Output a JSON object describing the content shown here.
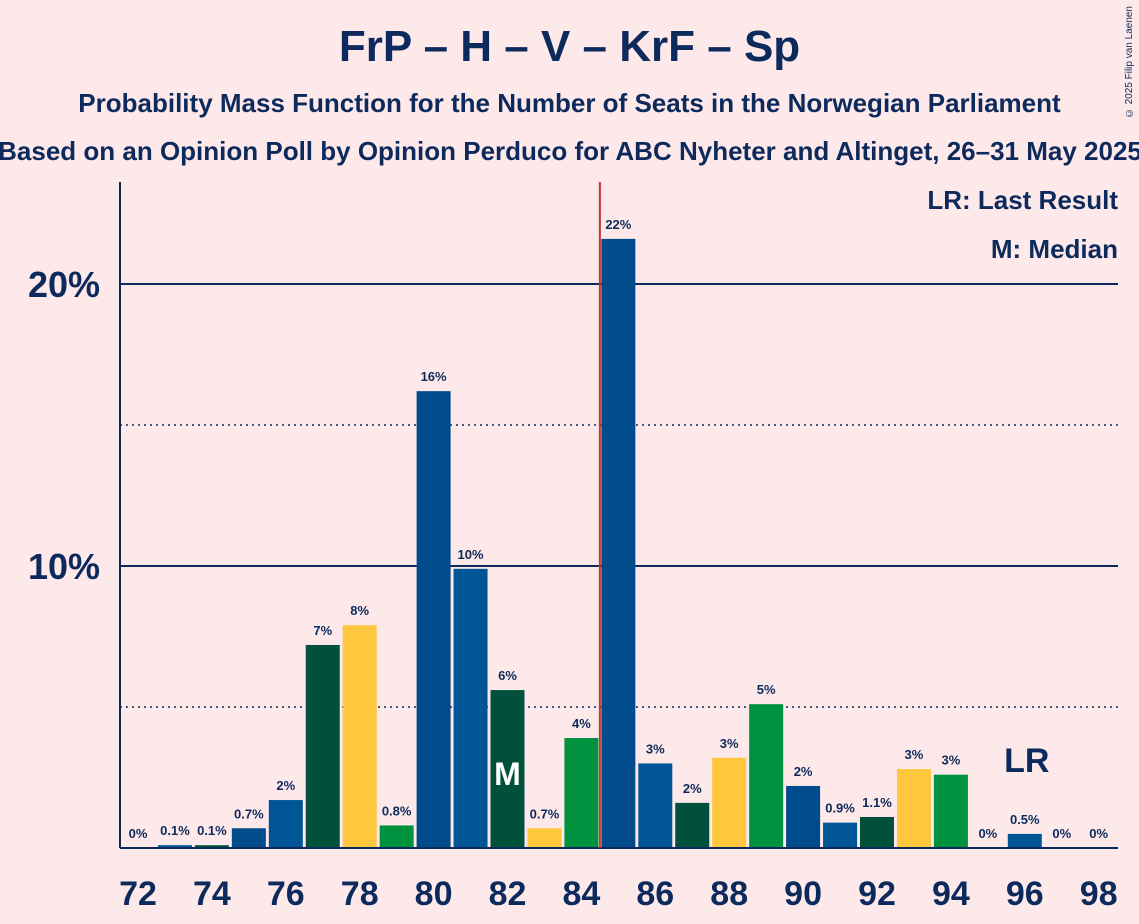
{
  "title": "FrP – H – V – KrF – Sp",
  "subtitle": "Probability Mass Function for the Number of Seats in the Norwegian Parliament",
  "subtitle2": "Based on an Opinion Poll by Opinion Perduco for ABC Nyheter and Altinget, 26–31 May 2025",
  "copyright": "© 2025 Filip van Laenen",
  "legend": {
    "lr": "LR: Last Result",
    "m": "M: Median"
  },
  "colors": {
    "FrP": "#004B8C",
    "H": "#005596",
    "KrF": "#FFC73D",
    "Sp": "#00923F",
    "V": "#00503C",
    "axis": "#0D2A5C",
    "last_result_line": "#C0392B"
  },
  "chart_data": {
    "type": "bar",
    "x": [
      72,
      73,
      74,
      75,
      76,
      77,
      78,
      79,
      80,
      81,
      82,
      83,
      84,
      85,
      86,
      87,
      88,
      89,
      90,
      91,
      92,
      93,
      94,
      95,
      96,
      97,
      98
    ],
    "values": [
      0,
      0.1,
      0.1,
      0.7,
      1.7,
      7.2,
      7.9,
      0.8,
      16.2,
      9.9,
      5.6,
      0.7,
      3.9,
      21.6,
      3.0,
      1.6,
      3.2,
      5.1,
      2.2,
      0.9,
      1.1,
      2.8,
      2.6,
      0,
      0.5,
      0,
      0
    ],
    "labels": [
      "0%",
      "0.1%",
      "0.1%",
      "0.7%",
      "2%",
      "7%",
      "8%",
      "0.8%",
      "16%",
      "10%",
      "6%",
      "0.7%",
      "4%",
      "22%",
      "3%",
      "2%",
      "3%",
      "5%",
      "2%",
      "0.9%",
      "1.1%",
      "3%",
      "3%",
      "0%",
      "0.5%",
      "0%",
      "0%"
    ],
    "bar_colors": [
      "#004B8C",
      "#005596",
      "#00503C",
      "#004B8C",
      "#005596",
      "#00503C",
      "#FFC73D",
      "#00923F",
      "#004B8C",
      "#005596",
      "#00503C",
      "#FFC73D",
      "#00923F",
      "#004B8C",
      "#005596",
      "#00503C",
      "#FFC73D",
      "#00923F",
      "#004B8C",
      "#005596",
      "#00503C",
      "#FFC73D",
      "#00923F",
      "#004B8C",
      "#005596",
      "#00503C",
      "#FFC73D"
    ],
    "x_tick_labels": [
      "72",
      "74",
      "76",
      "78",
      "80",
      "82",
      "84",
      "86",
      "88",
      "90",
      "92",
      "94",
      "96",
      "98"
    ],
    "y_tick_labels": [
      "10%",
      "20%"
    ],
    "ylim": [
      0,
      23.6
    ],
    "median": 82,
    "median_label": "M",
    "last_result": 96,
    "last_result_label": "LR",
    "majority_line": 84.5,
    "grid": true,
    "legend_position": "top-right"
  }
}
